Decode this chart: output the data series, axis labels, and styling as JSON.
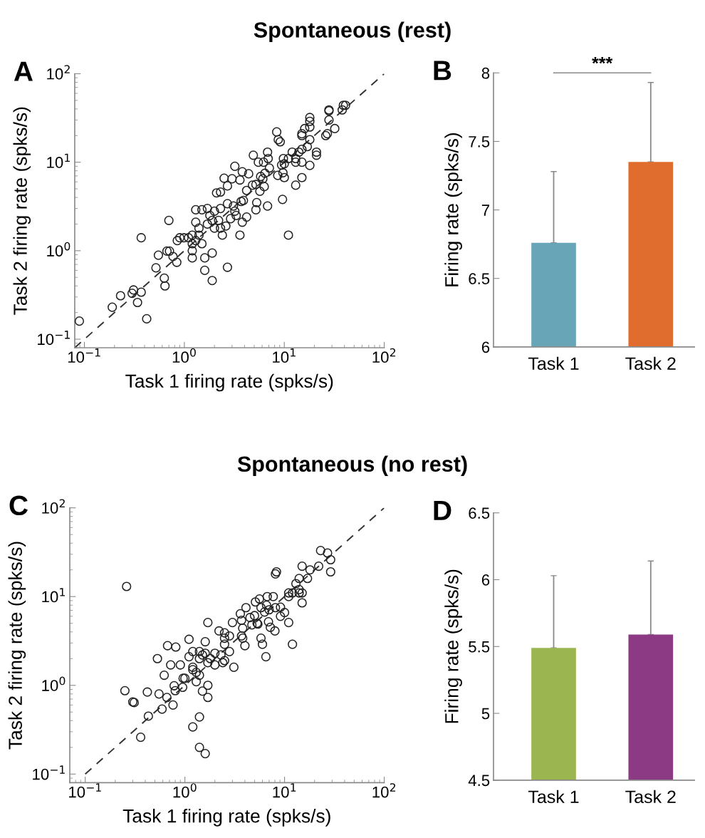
{
  "chart_data": [
    {
      "type": "scatter",
      "title": "Spontaneous (rest)",
      "xlabel": "Task 1 firing rate (spks/s)",
      "ylabel": "Task 2 firing rate (spks/s)",
      "annotations": [
        "A"
      ],
      "log": "xy",
      "xlim": [
        0.08,
        100
      ],
      "ylim": [
        0.08,
        100
      ],
      "xticks": [
        {
          "value": 0.1,
          "label": "10$^{−1}$"
        },
        {
          "value": 1,
          "label": "10$^{0}$"
        },
        {
          "value": 10,
          "label": "10$^{1}$"
        },
        {
          "value": 100,
          "label": "10$^{2}$"
        }
      ],
      "yticks": [
        {
          "value": 0.1,
          "label": "10$^{−1}$"
        },
        {
          "value": 1,
          "label": "10$^{0}$"
        },
        {
          "value": 10,
          "label": "10$^{1}$"
        },
        {
          "value": 100,
          "label": "10$^{2}$"
        }
      ],
      "series": [
        {
          "type": "scatter",
          "marker": "circle",
          "color": "#222222",
          "x": [
            0.089,
            0.19,
            0.23,
            0.31,
            0.3,
            0.37,
            0.34,
            0.42,
            0.37,
            0.52,
            0.55,
            0.63,
            0.64,
            0.7,
            0.67,
            0.71,
            0.77,
            0.84,
            0.85,
            0.9,
            0.99,
            1.1,
            1.2,
            1.2,
            1.2,
            1.2,
            1.3,
            1.3,
            1.3,
            1.4,
            1.5,
            1.4,
            1.5,
            1.7,
            1.7,
            1.6,
            1.6,
            1.9,
            1.9,
            1.9,
            2.0,
            2.0,
            2.1,
            2.2,
            2.3,
            2.3,
            2.4,
            2.5,
            2.7,
            2.6,
            2.7,
            2.7,
            3.0,
            2.9,
            3.1,
            3.2,
            3.3,
            3.6,
            3.6,
            3.8,
            3.8,
            3.9,
            4.2,
            4.2,
            4.4,
            4.8,
            4.9,
            5.2,
            5.2,
            5.3,
            5.5,
            5.8,
            6.1,
            6.2,
            6.3,
            6.4,
            6.8,
            6.9,
            7.1,
            6.8,
            8.4,
            8.7,
            9.1,
            8.6,
            9.6,
            9.7,
            9.8,
            10,
            10,
            11,
            11,
            12,
            13,
            13,
            13,
            14,
            15,
            15,
            15,
            15,
            15,
            17,
            18,
            18,
            18,
            18,
            18,
            16,
            21,
            21,
            26,
            27,
            28,
            28,
            28,
            32,
            38,
            39,
            41,
            9.4,
            5.7,
            3.7,
            3.2,
            2.3,
            1.8
          ],
          "values": [
            0.16,
            0.23,
            0.31,
            0.36,
            0.33,
            0.34,
            0.26,
            0.17,
            1.4,
            0.64,
            0.89,
            0.49,
            0.4,
            2.2,
            0.99,
            0.99,
            0.86,
            0.74,
            1.3,
            1.4,
            1.4,
            1.4,
            1.0,
            0.83,
            1.2,
            1.5,
            1.3,
            2.1,
            2.9,
            1.5,
            2.9,
            1.8,
            1.2,
            3.0,
            2.0,
            0.83,
            0.6,
            0.94,
            0.46,
            2.2,
            1.8,
            2.8,
            4.5,
            2.2,
            1.8,
            3.0,
            1.5,
            6.6,
            0.65,
            1.9,
            3.4,
            5.4,
            6.5,
            2.3,
            3.2,
            9.0,
            2.5,
            1.5,
            6.3,
            2.1,
            7.8,
            3.7,
            2.4,
            4.8,
            7.4,
            5.5,
            12,
            5.6,
            2.9,
            3.5,
            10,
            6.9,
            6.5,
            10,
            5.3,
            7.5,
            3.2,
            11,
            8.6,
            13,
            22,
            18,
            17,
            7.1,
            3.8,
            7.6,
            11,
            9.6,
            6.7,
            1.5,
            11,
            13,
            5.5,
            11,
            10,
            13,
            6.7,
            21,
            20,
            14,
            10,
            15,
            9.2,
            32,
            29,
            18,
            25,
            24,
            13,
            12,
            20,
            21,
            30,
            38,
            39,
            24,
            39,
            44,
            44,
            9.3,
            4.7,
            3.6,
            2.8,
            4.6,
            2.5
          ]
        },
        {
          "type": "line",
          "marker": "none",
          "color": "#333333",
          "line_style": "dashed",
          "x": [
            0.08,
            100
          ],
          "values": [
            0.08,
            100
          ]
        }
      ]
    },
    {
      "type": "bar",
      "ylabel": "Firing rate (spks/s)",
      "annotations": [
        "B",
        "***"
      ],
      "categories": [
        "Task 1",
        "Task 2"
      ],
      "values": [
        6.76,
        7.35
      ],
      "colors": [
        "#68a5b6",
        "#e06c2e"
      ],
      "errors": [
        [
          6.76,
          7.28
        ],
        [
          7.35,
          7.93
        ]
      ],
      "ylim": [
        6,
        8
      ],
      "yticks": [
        6,
        6.5,
        7,
        7.5,
        8
      ]
    },
    {
      "type": "scatter",
      "title": "Spontaneous (no rest)",
      "xlabel": "Task 1 firing rate (spks/s)",
      "ylabel": "Task 2 firing rate (spks/s)",
      "annotations": [
        "C"
      ],
      "log": "xy",
      "xlim": [
        0.07,
        100
      ],
      "ylim": [
        0.08,
        100
      ],
      "xticks": [
        {
          "value": 0.1,
          "label": "10$^{−1}$"
        },
        {
          "value": 1,
          "label": "10$^{0}$"
        },
        {
          "value": 10,
          "label": "10$^{1}$"
        },
        {
          "value": 100,
          "label": "10$^{2}$"
        }
      ],
      "yticks": [
        {
          "value": 0.1,
          "label": "10$^{−1}$"
        },
        {
          "value": 1,
          "label": "10$^{0}$"
        },
        {
          "value": 10,
          "label": "10$^{1}$"
        },
        {
          "value": 100,
          "label": "10$^{2}$"
        }
      ],
      "series": [
        {
          "type": "scatter",
          "marker": "circle",
          "color": "#222222",
          "x": [
            0.26,
            0.25,
            0.3,
            0.31,
            0.42,
            0.53,
            0.55,
            0.62,
            0.66,
            0.67,
            0.72,
            0.76,
            0.78,
            0.8,
            0.81,
            0.9,
            0.95,
            0.96,
            1.0,
            1.1,
            1.1,
            1.2,
            1.2,
            1.2,
            1.3,
            1.3,
            1.4,
            1.4,
            1.4,
            1.5,
            1.5,
            1.6,
            1.7,
            1.7,
            1.7,
            1.7,
            1.6,
            1.8,
            2.0,
            2.0,
            2.2,
            2.3,
            2.4,
            2.5,
            2.5,
            2.5,
            2.5,
            2.8,
            2.8,
            3.0,
            3.1,
            3.6,
            3.7,
            3.7,
            3.8,
            3.8,
            4.0,
            4.1,
            4.5,
            4.7,
            5.0,
            5.1,
            5.3,
            5.4,
            5.6,
            5.8,
            6.0,
            5.8,
            6.3,
            6.5,
            6.6,
            6.7,
            6.9,
            7.0,
            7.2,
            7.7,
            8.0,
            8.1,
            8.3,
            8.1,
            9.1,
            9.1,
            10,
            11,
            11,
            11,
            12,
            12,
            13,
            14,
            14,
            15,
            15,
            15,
            17,
            18,
            22,
            23,
            27,
            29,
            29,
            14,
            0.36,
            0.43,
            0.59,
            1.2,
            1.4,
            1.4,
            1.6
          ],
          "values": [
            13,
            0.87,
            0.65,
            0.64,
            0.84,
            2.0,
            0.8,
            1.3,
            0.73,
            2.8,
            1.7,
            0.6,
            0.99,
            0.87,
            2.7,
            1.7,
            0.95,
            1.2,
            1.2,
            2.1,
            3.3,
            2.4,
            1.5,
            1.6,
            1.1,
            1.4,
            1.3,
            2.0,
            2.4,
            2.2,
            0.86,
            3.1,
            0.73,
            1.0,
            1.8,
            5.1,
            2.3,
            2.0,
            2.3,
            1.7,
            4.1,
            2.2,
            1.8,
            1.9,
            3.9,
            3.4,
            2.9,
            3.6,
            2.4,
            5.1,
            1.6,
            6.4,
            5.4,
            3.6,
            4.4,
            3.4,
            2.8,
            7.5,
            5.8,
            4.8,
            6.1,
            8.7,
            5.0,
            4.9,
            9.4,
            3.4,
            2.9,
            7.5,
            6.7,
            2.1,
            8.0,
            10,
            5.2,
            7.1,
            4.5,
            10,
            4.1,
            18,
            19,
            7.5,
            7.6,
            6.0,
            6.6,
            5.1,
            11,
            10,
            2.9,
            11,
            14,
            11,
            16,
            11,
            8.5,
            22,
            16,
            20,
            22,
            33,
            31,
            26,
            19,
            12,
            0.26,
            0.45,
            0.54,
            0.34,
            0.44,
            0.2,
            0.17
          ]
        },
        {
          "type": "line",
          "marker": "none",
          "color": "#333333",
          "line_style": "dashed",
          "x": [
            0.1,
            100
          ],
          "values": [
            0.1,
            100
          ]
        }
      ]
    },
    {
      "type": "bar",
      "ylabel": "Firing rate (spks/s)",
      "annotations": [
        "D"
      ],
      "categories": [
        "Task 1",
        "Task 2"
      ],
      "values": [
        5.49,
        5.59
      ],
      "colors": [
        "#9bb550",
        "#8c3a83"
      ],
      "errors": [
        [
          5.49,
          6.03
        ],
        [
          5.59,
          6.14
        ]
      ],
      "ylim": [
        4.5,
        6.5
      ],
      "yticks": [
        4.5,
        5,
        5.5,
        6,
        6.5
      ]
    }
  ]
}
